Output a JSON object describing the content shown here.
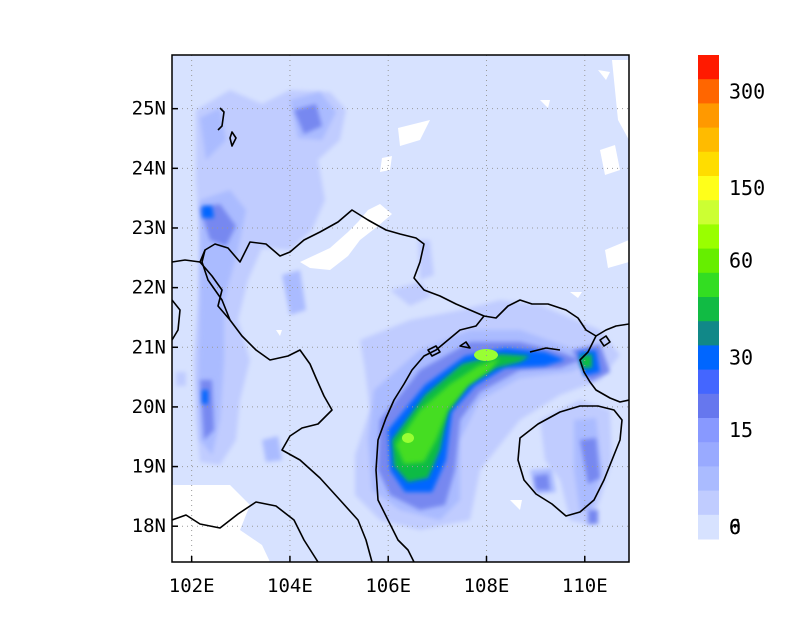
{
  "map": {
    "lat_labels": [
      "25N",
      "24N",
      "23N",
      "22N",
      "21N",
      "20N",
      "19N",
      "18N"
    ],
    "lon_labels": [
      "102E",
      "104E",
      "106E",
      "108E",
      "110E"
    ],
    "extent": {
      "lon_min": 101.6,
      "lon_max": 110.9,
      "lat_min": 17.4,
      "lat_max": 25.9
    },
    "gridlines": "dotted"
  },
  "colorbar": {
    "tick_labels": [
      "300",
      "150",
      "60",
      "30",
      "15",
      "6",
      "0"
    ],
    "colors": [
      "#ff1a00",
      "#ff6600",
      "#ff9900",
      "#ffbb00",
      "#ffdd00",
      "#ffff1a",
      "#ccff33",
      "#99ff00",
      "#66ee00",
      "#33dd22",
      "#11bb44",
      "#118888",
      "#0066ff",
      "#4466ff",
      "#6677ee",
      "#8899ff",
      "#99aaff",
      "#aabbff",
      "#c0ccff",
      "#d7e2ff"
    ]
  }
}
